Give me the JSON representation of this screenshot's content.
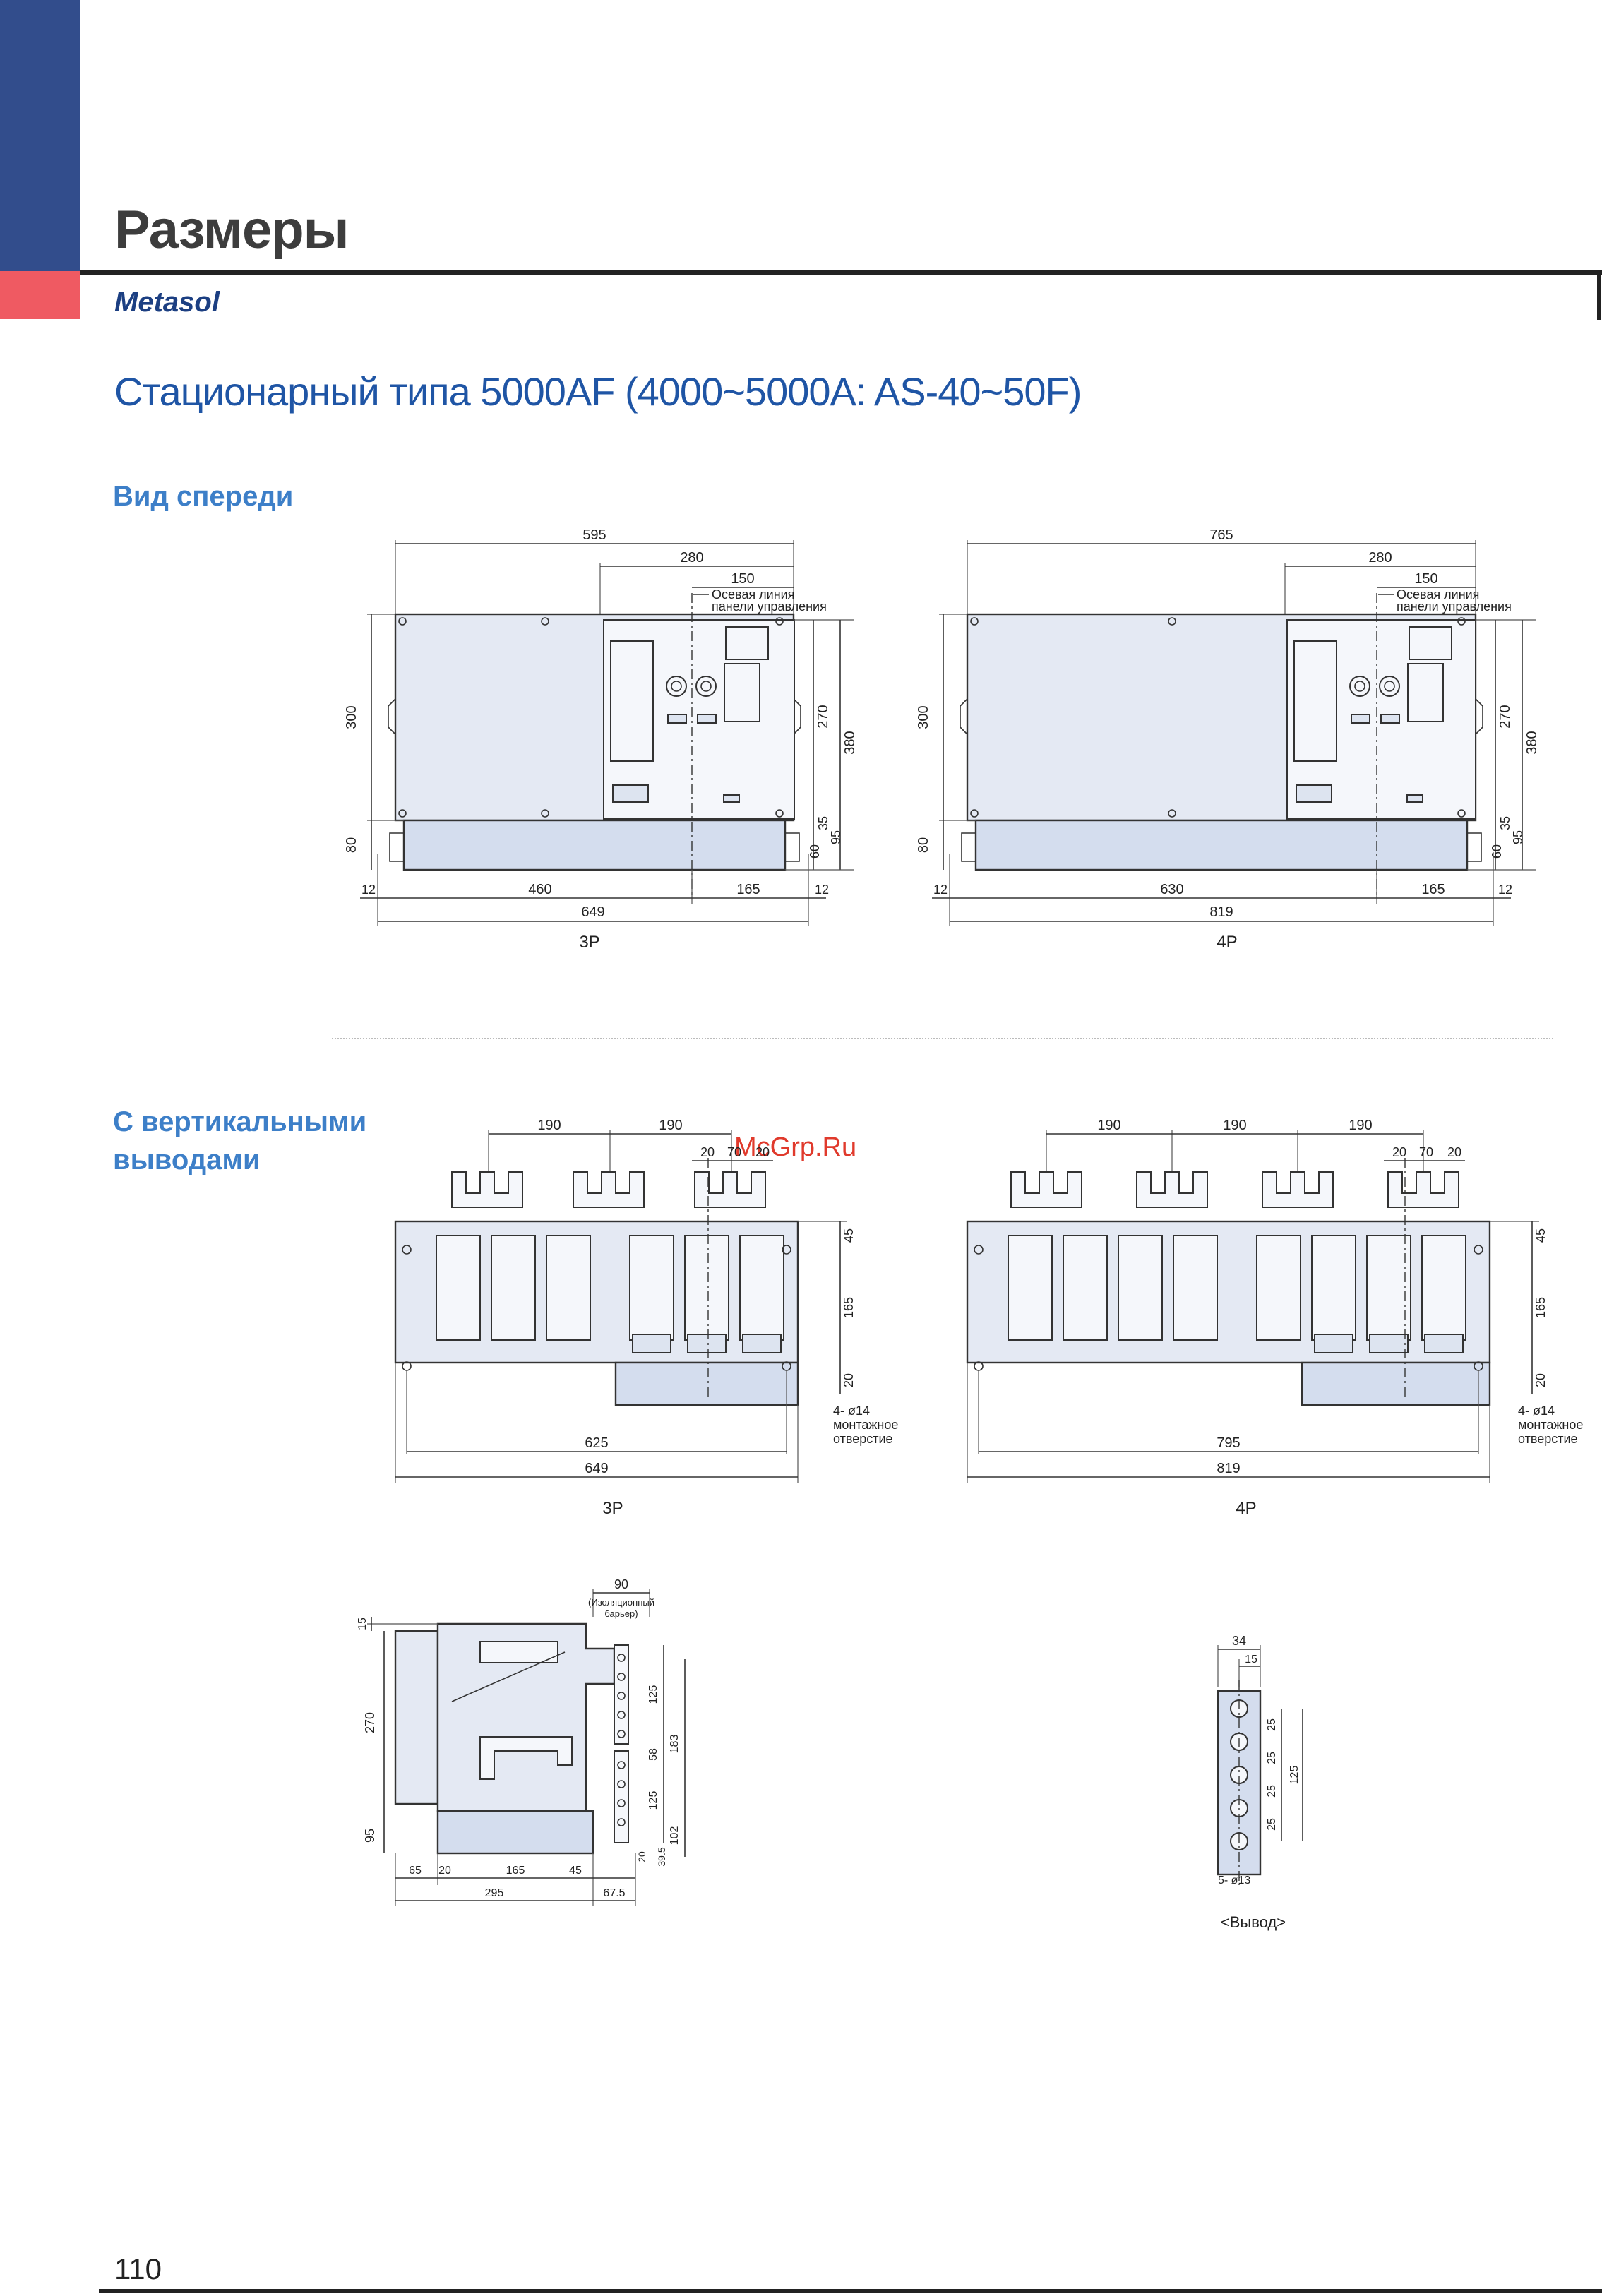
{
  "header": {
    "title": "Размеры",
    "brand": "Metasol",
    "subtitle": "Стационарный типа 5000AF (4000~5000A: AS-40~50F)"
  },
  "sections": {
    "front_view": "Вид спереди",
    "vertical_terminals": "С вертикальными выводами"
  },
  "watermark": "McGrp.Ru",
  "front_3p": {
    "caption": "3P",
    "dims": {
      "overall_top": "595",
      "right_part": "280",
      "center_offset": "150",
      "height_300": "300",
      "height_80": "80",
      "height_270": "270",
      "height_380": "380",
      "height_35": "35",
      "height_95": "95",
      "height_60": "60",
      "bottom_12_left": "12",
      "bottom_460": "460",
      "bottom_165": "165",
      "bottom_12_right": "12",
      "overall_649": "649"
    },
    "note": [
      "Осевая линия",
      "панели управления"
    ]
  },
  "front_4p": {
    "caption": "4P",
    "dims": {
      "overall_top": "765",
      "right_part": "280",
      "center_offset": "150",
      "height_300": "300",
      "height_80": "80",
      "height_270": "270",
      "height_380": "380",
      "height_35": "35",
      "height_95": "95",
      "height_60": "60",
      "bottom_12_left": "12",
      "bottom_630": "630",
      "bottom_165": "165",
      "bottom_12_right": "12",
      "overall_819": "819"
    },
    "note": [
      "Осевая линия",
      "панели управления"
    ]
  },
  "top_3p": {
    "caption": "3P",
    "dims": {
      "pitch_1": "190",
      "pitch_2": "190",
      "w20a": "20",
      "w70": "70",
      "w20b": "20",
      "h45": "45",
      "h165": "165",
      "h20": "20",
      "w625": "625",
      "w649": "649"
    },
    "hole_note": [
      "4- ø14",
      "монтажное",
      "отверстие"
    ]
  },
  "top_4p": {
    "caption": "4P",
    "dims": {
      "pitch_1": "190",
      "pitch_2": "190",
      "pitch_3": "190",
      "w20a": "20",
      "w70": "70",
      "w20b": "20",
      "h45": "45",
      "h165": "165",
      "h20": "20",
      "w795": "795",
      "w819": "819"
    },
    "hole_note": [
      "4- ø14",
      "монтажное",
      "отверстие"
    ]
  },
  "side_view": {
    "dims": {
      "w90": "90",
      "barrier_1": "(Изоляционный",
      "barrier_2": "барьер)",
      "h15": "15",
      "h270": "270",
      "h95": "95",
      "h125a": "125",
      "h58": "58",
      "h183": "183",
      "h125b": "125",
      "h102": "102",
      "h39_5": "39.5",
      "h20": "20",
      "w65": "65",
      "w20": "20",
      "w165": "165",
      "w45": "45",
      "w295": "295",
      "w67_5": "67.5"
    }
  },
  "terminal": {
    "caption": "<Вывод>",
    "dims": {
      "w34": "34",
      "w15": "15",
      "p25a": "25",
      "p25b": "25",
      "p25c": "25",
      "p25d": "25",
      "h125": "125"
    },
    "holes": "5- ø13"
  },
  "page_number": "110"
}
